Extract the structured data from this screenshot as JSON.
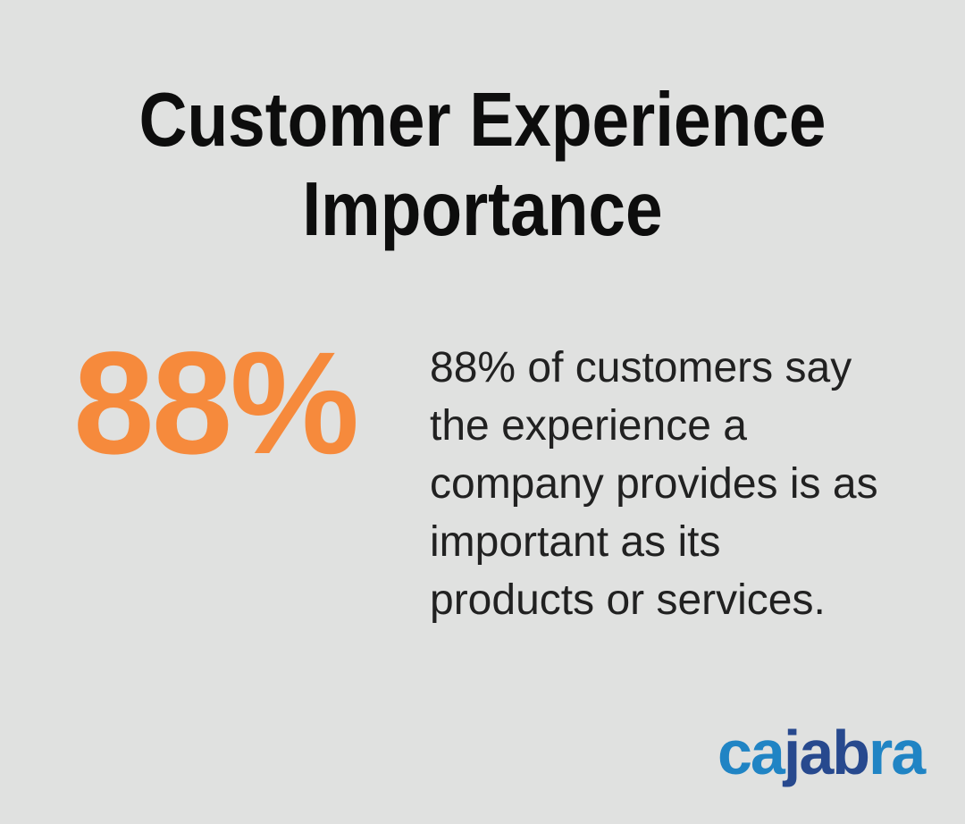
{
  "page": {
    "background_color": "#e0e1e0"
  },
  "title": {
    "text": "Customer Experience Importance",
    "line1": "Customer Experience",
    "line2": "Importance",
    "color": "#0d0d0d"
  },
  "stat": {
    "value": "88%",
    "value_color": "#f68a3c",
    "description": "88% of customers say the experience a company provides is as important as its products or services.",
    "description_lines": [
      "88% of customers say",
      "the experience a",
      "company provides is as",
      "important as its",
      "products or services."
    ],
    "description_color": "#212121"
  },
  "logo": {
    "brand": "cajabra",
    "segments": [
      {
        "text": "ca",
        "color": "#2084c4"
      },
      {
        "text": "jab",
        "color": "#27498e"
      },
      {
        "text": "ra",
        "color": "#2084c4"
      }
    ]
  }
}
